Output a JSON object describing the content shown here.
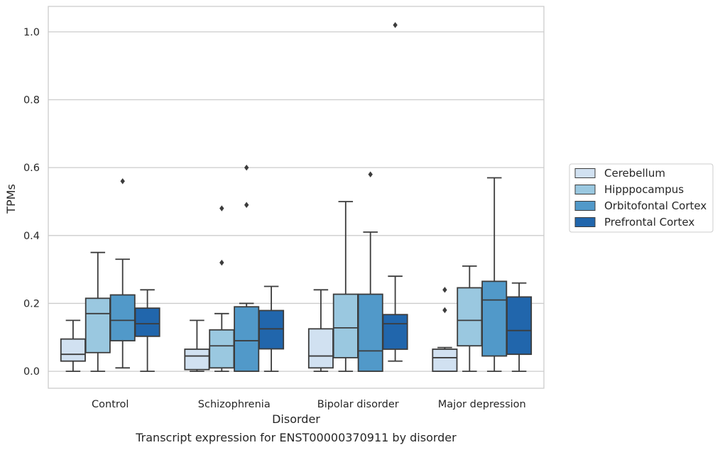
{
  "caption": "Transcript expression for ENST00000370911 by disorder",
  "chart_data": {
    "type": "box",
    "title": "",
    "xlabel": "Disorder",
    "ylabel": "TPMs",
    "ylim": [
      -0.05,
      1.075
    ],
    "yticks": [
      "0.0",
      "0.2",
      "0.4",
      "0.6",
      "0.8",
      "1.0"
    ],
    "ytick_values": [
      0.0,
      0.2,
      0.4,
      0.6,
      0.8,
      1.0
    ],
    "grid": "horizontal",
    "legend_position": "right",
    "categories": [
      "Control",
      "Schizophrenia",
      "Bipolar disorder",
      "Major depression"
    ],
    "series": [
      {
        "name": "Cerebellum",
        "color": "#d1e1f1",
        "boxes": [
          {
            "whisker_low": 0.0,
            "q1": 0.03,
            "median": 0.05,
            "q3": 0.095,
            "whisker_high": 0.15,
            "outliers": []
          },
          {
            "whisker_low": 0.0,
            "q1": 0.005,
            "median": 0.045,
            "q3": 0.065,
            "whisker_high": 0.15,
            "outliers": []
          },
          {
            "whisker_low": 0.0,
            "q1": 0.01,
            "median": 0.045,
            "q3": 0.125,
            "whisker_high": 0.24,
            "outliers": []
          },
          {
            "whisker_low": 0.0,
            "q1": 0.0,
            "median": 0.04,
            "q3": 0.065,
            "whisker_high": 0.07,
            "outliers": [
              0.24,
              0.18
            ]
          }
        ]
      },
      {
        "name": "Hipppocampus",
        "color": "#9ac8e0",
        "boxes": [
          {
            "whisker_low": 0.0,
            "q1": 0.055,
            "median": 0.17,
            "q3": 0.215,
            "whisker_high": 0.35,
            "outliers": []
          },
          {
            "whisker_low": 0.0,
            "q1": 0.01,
            "median": 0.075,
            "q3": 0.122,
            "whisker_high": 0.17,
            "outliers": [
              0.48,
              0.32
            ]
          },
          {
            "whisker_low": 0.0,
            "q1": 0.04,
            "median": 0.128,
            "q3": 0.227,
            "whisker_high": 0.5,
            "outliers": []
          },
          {
            "whisker_low": 0.0,
            "q1": 0.075,
            "median": 0.15,
            "q3": 0.246,
            "whisker_high": 0.31,
            "outliers": []
          }
        ]
      },
      {
        "name": "Orbitofontal Cortex",
        "color": "#5199c9",
        "boxes": [
          {
            "whisker_low": 0.01,
            "q1": 0.09,
            "median": 0.15,
            "q3": 0.225,
            "whisker_high": 0.33,
            "outliers": [
              0.56
            ]
          },
          {
            "whisker_low": 0.0,
            "q1": 0.0,
            "median": 0.09,
            "q3": 0.19,
            "whisker_high": 0.2,
            "outliers": [
              0.6,
              0.49
            ]
          },
          {
            "whisker_low": 0.0,
            "q1": 0.0,
            "median": 0.06,
            "q3": 0.227,
            "whisker_high": 0.41,
            "outliers": [
              0.58
            ]
          },
          {
            "whisker_low": 0.0,
            "q1": 0.045,
            "median": 0.21,
            "q3": 0.265,
            "whisker_high": 0.57,
            "outliers": []
          }
        ]
      },
      {
        "name": "Prefrontal Cortex",
        "color": "#2166ac",
        "boxes": [
          {
            "whisker_low": 0.0,
            "q1": 0.103,
            "median": 0.14,
            "q3": 0.186,
            "whisker_high": 0.24,
            "outliers": []
          },
          {
            "whisker_low": 0.0,
            "q1": 0.066,
            "median": 0.125,
            "q3": 0.179,
            "whisker_high": 0.25,
            "outliers": []
          },
          {
            "whisker_low": 0.03,
            "q1": 0.065,
            "median": 0.14,
            "q3": 0.167,
            "whisker_high": 0.28,
            "outliers": [
              1.02
            ]
          },
          {
            "whisker_low": 0.0,
            "q1": 0.05,
            "median": 0.12,
            "q3": 0.219,
            "whisker_high": 0.26,
            "outliers": []
          }
        ]
      }
    ]
  }
}
